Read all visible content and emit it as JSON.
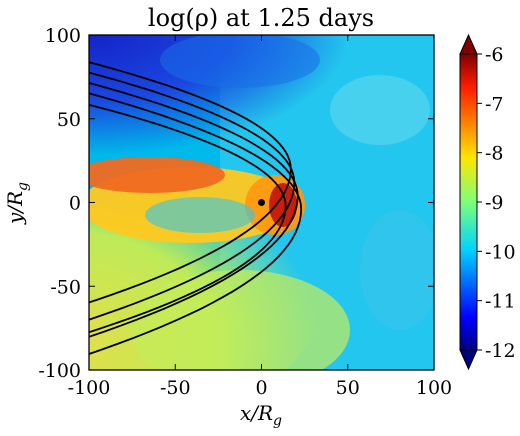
{
  "chart_data": {
    "type": "heatmap",
    "title": "log(ρ) at 1.25 days",
    "xlabel": "x/R_g",
    "ylabel": "y/R_g",
    "xlim": [
      -100,
      100
    ],
    "ylim": [
      -100,
      100
    ],
    "x_ticks": [
      "-100",
      "-50",
      "0",
      "50",
      "100"
    ],
    "y_ticks": [
      "100",
      "50",
      "0",
      "-50",
      "-100"
    ],
    "colorbar": {
      "range": [
        -12,
        -6
      ],
      "ticks": [
        "-6",
        "-7",
        "-8",
        "-9",
        "-10",
        "-11",
        "-12"
      ],
      "colormap": "jet",
      "extend": "both"
    },
    "point_mass": {
      "x": 0,
      "y": 0
    },
    "orbits": [
      {
        "periapsis_x": 17,
        "offset_y": 20,
        "width": 125
      },
      {
        "periapsis_x": 19,
        "offset_y": 12,
        "width": 130
      },
      {
        "periapsis_x": 21,
        "offset_y": 4,
        "width": 135
      },
      {
        "periapsis_x": 23,
        "offset_y": -4,
        "width": 140
      },
      {
        "periapsis_x": 14,
        "offset_y": -2,
        "width": 115
      }
    ],
    "colors": {
      "background": "#00b0e8",
      "stream_core": "#e8451a",
      "low_density": "#1a2fd0"
    }
  }
}
